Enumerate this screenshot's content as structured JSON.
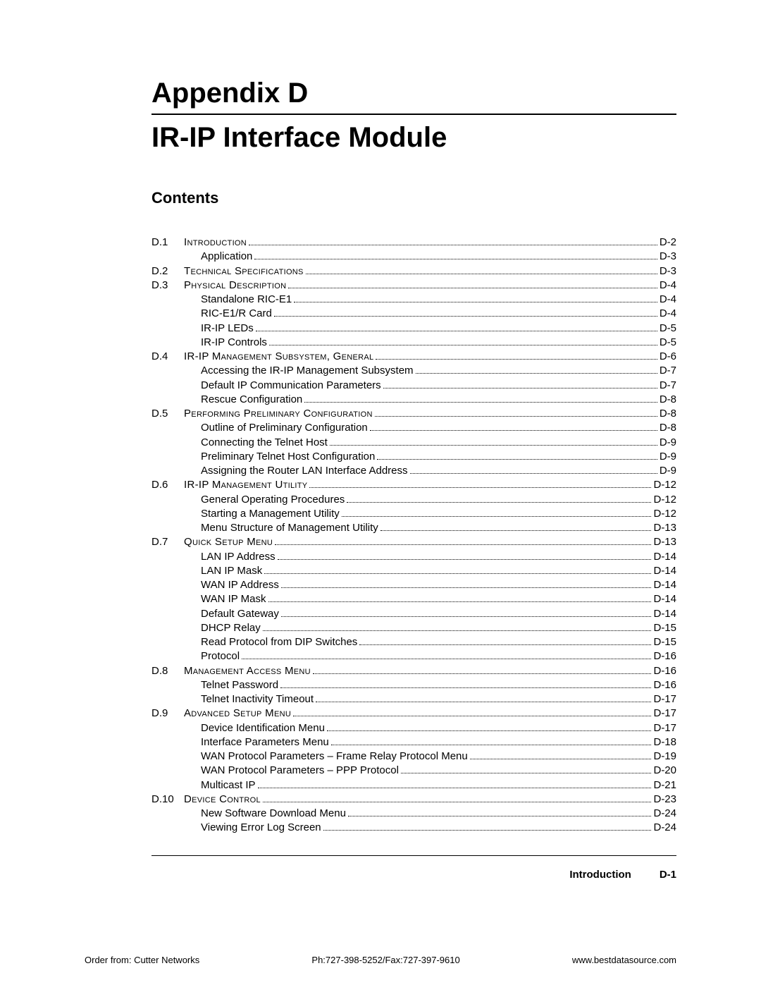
{
  "header": {
    "appendix": "Appendix D",
    "module": "IR-IP Interface Module",
    "contents_label": "Contents"
  },
  "toc": [
    {
      "num": "D.1",
      "title": "Introduction",
      "page": "D-2",
      "level": 0,
      "smallcaps": true
    },
    {
      "num": "",
      "title": "Application",
      "page": "D-3",
      "level": 1,
      "smallcaps": false
    },
    {
      "num": "D.2",
      "title": "Technical Specifications",
      "page": "D-3",
      "level": 0,
      "smallcaps": true
    },
    {
      "num": "D.3",
      "title": "Physical Description",
      "page": "D-4",
      "level": 0,
      "smallcaps": true
    },
    {
      "num": "",
      "title": "Standalone RIC-E1",
      "page": "D-4",
      "level": 1,
      "smallcaps": false
    },
    {
      "num": "",
      "title": "RIC-E1/R Card",
      "page": "D-4",
      "level": 1,
      "smallcaps": false
    },
    {
      "num": "",
      "title": "IR-IP LEDs",
      "page": "D-5",
      "level": 1,
      "smallcaps": false
    },
    {
      "num": "",
      "title": "IR-IP Controls",
      "page": "D-5",
      "level": 1,
      "smallcaps": false
    },
    {
      "num": "D.4",
      "title": "IR-IP Management Subsystem, General",
      "page": "D-6",
      "level": 0,
      "smallcaps": true
    },
    {
      "num": "",
      "title": "Accessing the IR-IP Management Subsystem",
      "page": "D-7",
      "level": 1,
      "smallcaps": false
    },
    {
      "num": "",
      "title": "Default IP Communication Parameters",
      "page": "D-7",
      "level": 1,
      "smallcaps": false
    },
    {
      "num": "",
      "title": "Rescue Configuration",
      "page": "D-8",
      "level": 1,
      "smallcaps": false
    },
    {
      "num": "D.5",
      "title": "Performing Preliminary Configuration",
      "page": "D-8",
      "level": 0,
      "smallcaps": true
    },
    {
      "num": "",
      "title": "Outline of Preliminary Configuration",
      "page": "D-8",
      "level": 1,
      "smallcaps": false
    },
    {
      "num": "",
      "title": "Connecting the Telnet Host",
      "page": "D-9",
      "level": 1,
      "smallcaps": false
    },
    {
      "num": "",
      "title": "Preliminary Telnet Host Configuration",
      "page": "D-9",
      "level": 1,
      "smallcaps": false
    },
    {
      "num": "",
      "title": "Assigning the Router LAN Interface Address",
      "page": "D-9",
      "level": 1,
      "smallcaps": false
    },
    {
      "num": "D.6",
      "title": "IR-IP Management Utility",
      "page": "D-12",
      "level": 0,
      "smallcaps": true
    },
    {
      "num": "",
      "title": "General Operating Procedures",
      "page": "D-12",
      "level": 1,
      "smallcaps": false
    },
    {
      "num": "",
      "title": "Starting a Management Utility",
      "page": "D-12",
      "level": 1,
      "smallcaps": false
    },
    {
      "num": "",
      "title": "Menu Structure of Management Utility",
      "page": "D-13",
      "level": 1,
      "smallcaps": false
    },
    {
      "num": "D.7",
      "title": "Quick Setup Menu",
      "page": "D-13",
      "level": 0,
      "smallcaps": true
    },
    {
      "num": "",
      "title": "LAN IP Address",
      "page": "D-14",
      "level": 1,
      "smallcaps": false
    },
    {
      "num": "",
      "title": "LAN IP Mask",
      "page": "D-14",
      "level": 1,
      "smallcaps": false
    },
    {
      "num": "",
      "title": "WAN IP Address",
      "page": "D-14",
      "level": 1,
      "smallcaps": false
    },
    {
      "num": "",
      "title": "WAN IP Mask",
      "page": "D-14",
      "level": 1,
      "smallcaps": false
    },
    {
      "num": "",
      "title": "Default Gateway",
      "page": "D-14",
      "level": 1,
      "smallcaps": false
    },
    {
      "num": "",
      "title": "DHCP Relay",
      "page": "D-15",
      "level": 1,
      "smallcaps": false
    },
    {
      "num": "",
      "title": "Read Protocol from DIP Switches",
      "page": "D-15",
      "level": 1,
      "smallcaps": false
    },
    {
      "num": "",
      "title": "Protocol",
      "page": "D-16",
      "level": 1,
      "smallcaps": false
    },
    {
      "num": "D.8",
      "title": "Management Access Menu",
      "page": "D-16",
      "level": 0,
      "smallcaps": true
    },
    {
      "num": "",
      "title": "Telnet Password",
      "page": "D-16",
      "level": 1,
      "smallcaps": false
    },
    {
      "num": "",
      "title": "Telnet Inactivity Timeout",
      "page": "D-17",
      "level": 1,
      "smallcaps": false
    },
    {
      "num": "D.9",
      "title": "Advanced Setup Menu",
      "page": "D-17",
      "level": 0,
      "smallcaps": true
    },
    {
      "num": "",
      "title": "Device Identification Menu",
      "page": "D-17",
      "level": 1,
      "smallcaps": false
    },
    {
      "num": "",
      "title": "Interface Parameters Menu",
      "page": "D-18",
      "level": 1,
      "smallcaps": false
    },
    {
      "num": "",
      "title": "WAN Protocol Parameters – Frame Relay Protocol Menu",
      "page": "D-19",
      "level": 1,
      "smallcaps": false
    },
    {
      "num": "",
      "title": "WAN Protocol Parameters – PPP Protocol",
      "page": "D-20",
      "level": 1,
      "smallcaps": false
    },
    {
      "num": "",
      "title": "Multicast IP",
      "page": "D-21",
      "level": 1,
      "smallcaps": false
    },
    {
      "num": "D.10",
      "title": "Device Control",
      "page": "D-23",
      "level": 0,
      "smallcaps": true
    },
    {
      "num": "",
      "title": "New Software Download Menu",
      "page": "D-24",
      "level": 1,
      "smallcaps": false
    },
    {
      "num": "",
      "title": "Viewing Error Log Screen",
      "page": "D-24",
      "level": 1,
      "smallcaps": false
    }
  ],
  "footer": {
    "section": "Introduction",
    "page_no": "D-1",
    "order": "Order from: Cutter Networks",
    "phone": "Ph:727-398-5252/Fax:727-397-9610",
    "url": "www.bestdatasource.com"
  }
}
